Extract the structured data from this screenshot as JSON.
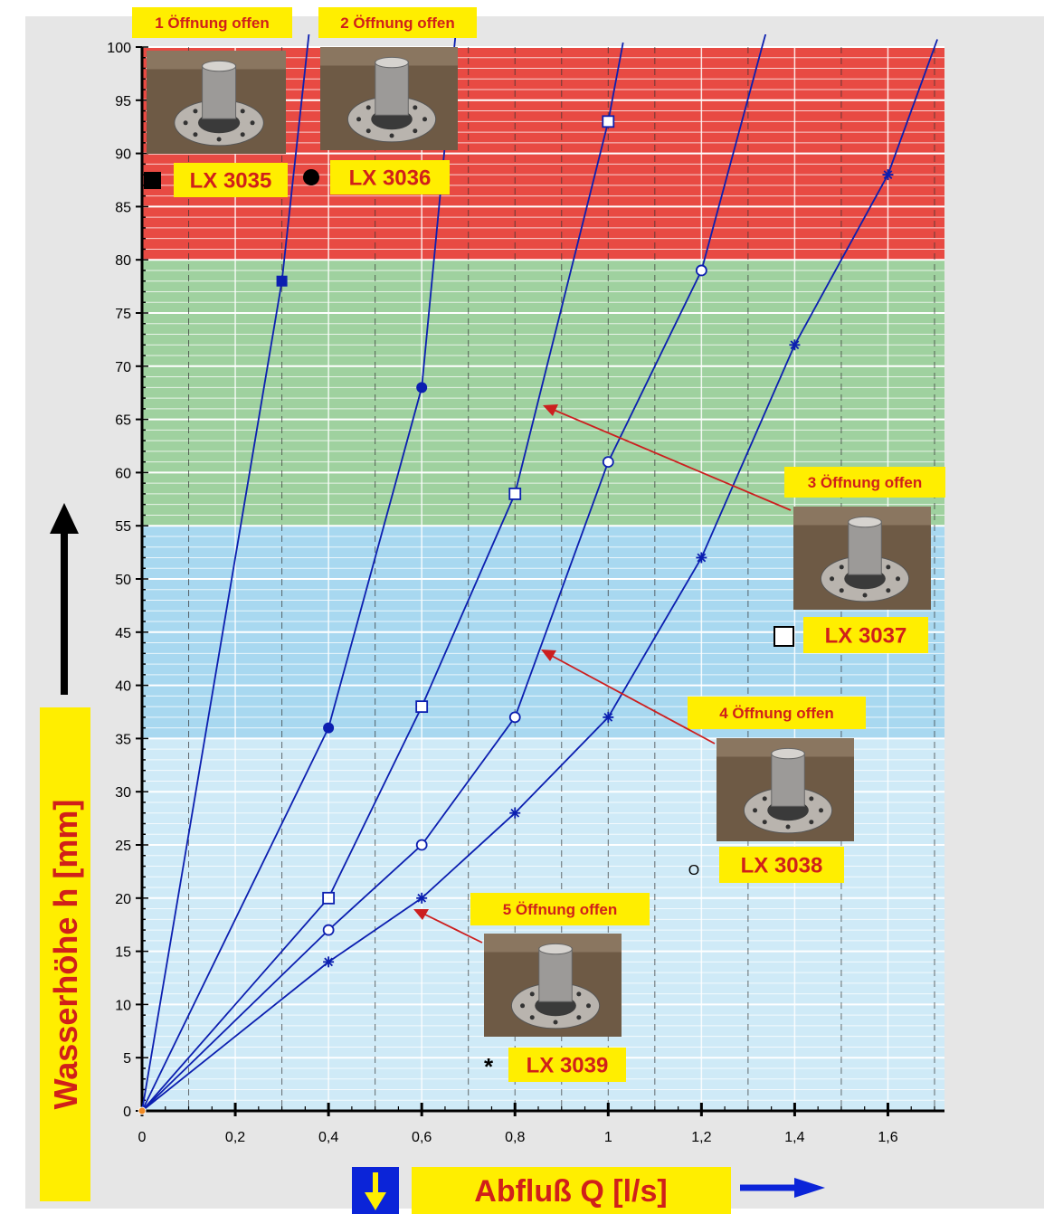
{
  "chart_data": {
    "type": "line",
    "xlabel": "Abfluß Q [l/s]",
    "ylabel": "Wasserhöhe h [mm]",
    "xlim": [
      0,
      1.7
    ],
    "ylim": [
      0,
      100
    ],
    "x_ticks": [
      0,
      0.2,
      0.4,
      0.6,
      0.8,
      1.0,
      1.2,
      1.4,
      1.6
    ],
    "x_tick_labels": [
      "0",
      "0,2",
      "0,4",
      "0,6",
      "0,8",
      "1",
      "1,2",
      "1,4",
      "1,6"
    ],
    "y_ticks": [
      0,
      5,
      10,
      15,
      20,
      25,
      30,
      35,
      40,
      45,
      50,
      55,
      60,
      65,
      70,
      75,
      80,
      85,
      90,
      95,
      100
    ],
    "y_tick_labels": [
      "0",
      "5",
      "10",
      "15",
      "20",
      "25",
      "30",
      "35",
      "40",
      "45",
      "50",
      "55",
      "60",
      "65",
      "70",
      "75",
      "80",
      "85",
      "90",
      "95",
      "100"
    ],
    "grid": true,
    "bands": [
      {
        "from": 0,
        "to": 35,
        "color": "#cfeaf7"
      },
      {
        "from": 35,
        "to": 55,
        "color": "#a8d8f0"
      },
      {
        "from": 55,
        "to": 80,
        "color": "#9fd19f"
      },
      {
        "from": 80,
        "to": 100,
        "color": "#e84a43"
      }
    ],
    "line_color": "#0c1fb0",
    "series": [
      {
        "name": "LX 3035",
        "marker": "filled-square",
        "opening": "1 Öffnung offen",
        "points": [
          [
            0,
            0
          ],
          [
            0.3,
            78
          ],
          [
            0.355,
            100
          ]
        ]
      },
      {
        "name": "LX 3036",
        "marker": "filled-circle",
        "opening": "2 Öffnung offen",
        "points": [
          [
            0,
            0
          ],
          [
            0.4,
            36
          ],
          [
            0.6,
            68
          ],
          [
            0.67,
            100
          ]
        ]
      },
      {
        "name": "LX 3037",
        "marker": "open-square",
        "opening": "3 Öffnung offen",
        "points": [
          [
            0,
            0
          ],
          [
            0.4,
            20
          ],
          [
            0.6,
            38
          ],
          [
            0.8,
            58
          ],
          [
            1.0,
            93
          ],
          [
            1.03,
            100
          ]
        ]
      },
      {
        "name": "LX 3038",
        "marker": "open-circle",
        "opening": "4 Öffnung offen",
        "points": [
          [
            0,
            0
          ],
          [
            0.4,
            17
          ],
          [
            0.6,
            25
          ],
          [
            0.8,
            37
          ],
          [
            1.0,
            61
          ],
          [
            1.2,
            79
          ],
          [
            1.33,
            100
          ]
        ]
      },
      {
        "name": "LX 3039",
        "marker": "asterisk",
        "opening": "5 Öffnung offen",
        "points": [
          [
            0,
            0
          ],
          [
            0.4,
            14
          ],
          [
            0.6,
            20
          ],
          [
            0.8,
            28
          ],
          [
            1.0,
            37
          ],
          [
            1.2,
            52
          ],
          [
            1.4,
            72
          ],
          [
            1.6,
            88
          ],
          [
            1.7,
            100
          ]
        ]
      }
    ],
    "annotations": [
      {
        "label": "1 Öffnung offen",
        "product": "LX 3035",
        "symbol": "■"
      },
      {
        "label": "2 Öffnung offen",
        "product": "LX 3036",
        "symbol": "●"
      },
      {
        "label": "3 Öffnung offen",
        "product": "LX 3037",
        "symbol": "□"
      },
      {
        "label": "4 Öffnung offen",
        "product": "LX 3038",
        "symbol": "O"
      },
      {
        "label": "5 Öffnung offen",
        "product": "LX 3039",
        "symbol": "*"
      }
    ],
    "colors": {
      "label_bg": "#ffee00",
      "label_text": "#d0201a",
      "axis_arrow": "#0c1fb0",
      "down_box": "#0b24d8"
    }
  }
}
